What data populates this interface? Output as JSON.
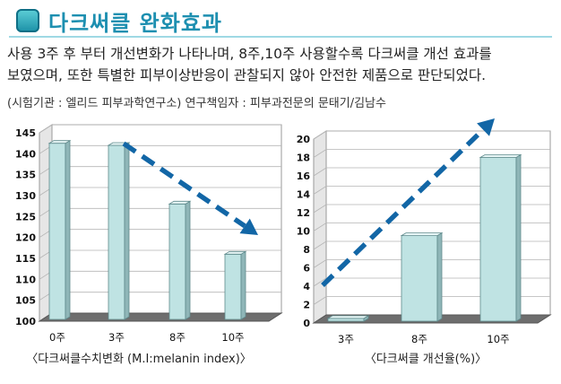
{
  "header": {
    "title": "다크써클 완화효과",
    "desc_line1": "사용 3주 후 부터 개선변화가 나타나며, 8주,10주 사용할수록 다크써클 개선 효과를",
    "desc_line2": "보였으며, 또한 특별한 피부이상반응이 관찰되지 않아 안전한 제품으로 판단되었다.",
    "sub": "(시험기관 : 엘리드 피부과학연구소) 연구책임자 : 피부과전문의 문태기/김남수"
  },
  "colors": {
    "bar_face": "#bfe3e3",
    "bar_side": "#8fb6b8",
    "bar_top": "#e6f5f5",
    "floor": "#6e6e6e",
    "arrow": "#1266a6",
    "accent": "#1d8fb0"
  },
  "chart_data": [
    {
      "type": "bar",
      "categories": [
        "0주",
        "3주",
        "8주",
        "10주"
      ],
      "values": [
        142.5,
        142,
        128,
        116
      ],
      "ylim": [
        100,
        145
      ],
      "yticks": [
        "100",
        "105",
        "110",
        "115",
        "120",
        "125",
        "130",
        "135",
        "140",
        "145"
      ],
      "caption": "〈다크써클수치변화 (M.I:melanin index)〉",
      "trend": "down",
      "grid": true
    },
    {
      "type": "bar",
      "categories": [
        "3주",
        "8주",
        "10주"
      ],
      "values": [
        0.5,
        9.5,
        18
      ],
      "ylim": [
        0,
        20
      ],
      "yticks": [
        "0",
        "2",
        "4",
        "6",
        "8",
        "10",
        "12",
        "14",
        "16",
        "18",
        "20"
      ],
      "caption": "〈다크써클 개선율(%)〉",
      "trend": "up",
      "grid": true
    }
  ]
}
